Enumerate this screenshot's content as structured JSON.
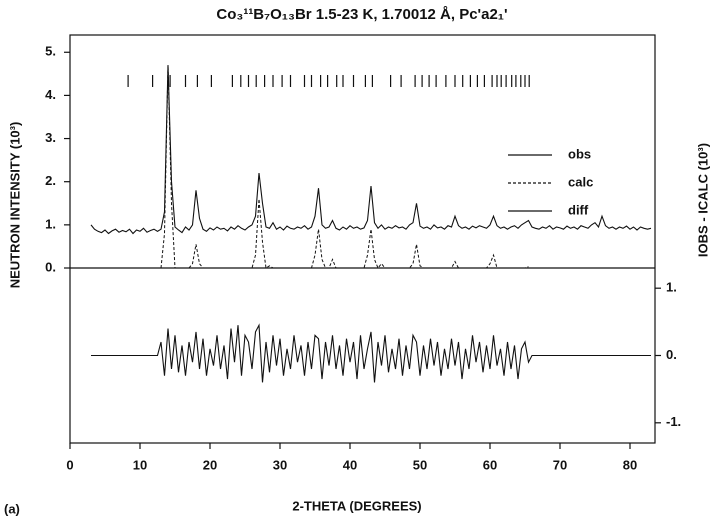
{
  "chart_data": {
    "type": "line",
    "title": "Co₃¹¹B₇O₁₃Br 1.5-23 K, 1.70012 Å, Pc'a2₁'",
    "x_label": "2-THETA (DEGREES)",
    "y_label": "NEUTRON INTENSITY (10³)",
    "y2_label": "IOBS - ICALC (10³)",
    "panel_label": "(a)",
    "xlim": [
      0,
      85
    ],
    "xticks": [
      0,
      10,
      20,
      30,
      40,
      50,
      60,
      70,
      80
    ],
    "ylim": [
      0,
      5.4
    ],
    "yticks": [
      {
        "value": 0,
        "label": "0."
      },
      {
        "value": 1,
        "label": "1."
      },
      {
        "value": 2,
        "label": "2."
      },
      {
        "value": 3,
        "label": "3."
      },
      {
        "value": 4,
        "label": "4."
      },
      {
        "value": 5,
        "label": "5."
      }
    ],
    "y2lim": [
      -1.3,
      1.3
    ],
    "y2ticks": [
      {
        "value": 1,
        "label": "1."
      },
      {
        "value": 0,
        "label": "0."
      },
      {
        "value": -1,
        "label": "-1."
      }
    ],
    "reflection_positions": [
      8.3,
      11.8,
      14.3,
      16.5,
      18.2,
      20.2,
      23.2,
      24.4,
      25.5,
      26.6,
      27.8,
      29,
      30.3,
      31.5,
      33.5,
      34.5,
      35.8,
      36.8,
      38.1,
      39,
      40.5,
      42.2,
      43.2,
      45.8,
      47.3,
      49.3,
      50.3,
      51.3,
      52.3,
      53.7,
      55,
      56.1,
      57.2,
      58.2,
      59.2,
      60.3,
      61,
      61.6,
      62.3,
      63.1,
      63.7,
      64.4,
      65,
      65.6
    ],
    "x": [
      3,
      3.5,
      4,
      4.5,
      5,
      5.5,
      6,
      6.5,
      7,
      7.5,
      8,
      8.5,
      9,
      9.5,
      10,
      10.5,
      11,
      11.5,
      12,
      12.5,
      13,
      13.5,
      14,
      14.5,
      15,
      15.5,
      16,
      16.5,
      17,
      17.5,
      18,
      18.5,
      19,
      19.5,
      20,
      20.5,
      21,
      21.5,
      22,
      22.5,
      23,
      23.5,
      24,
      24.5,
      25,
      25.5,
      26,
      26.5,
      27,
      27.5,
      28,
      28.5,
      29,
      29.5,
      30,
      30.5,
      31,
      31.5,
      32,
      32.5,
      33,
      33.5,
      34,
      34.5,
      35,
      35.5,
      36,
      36.5,
      37,
      37.5,
      38,
      38.5,
      39,
      39.5,
      40,
      40.5,
      41,
      41.5,
      42,
      42.5,
      43,
      43.5,
      44,
      44.5,
      45,
      45.5,
      46,
      46.5,
      47,
      47.5,
      48,
      48.5,
      49,
      49.5,
      50,
      50.5,
      51,
      51.5,
      52,
      52.5,
      53,
      53.5,
      54,
      54.5,
      55,
      55.5,
      56,
      56.5,
      57,
      57.5,
      58,
      58.5,
      59,
      59.5,
      60,
      60.5,
      61,
      61.5,
      62,
      62.5,
      63,
      63.5,
      64,
      64.5,
      65,
      65.5,
      66,
      66.5,
      67,
      67.5,
      68,
      68.5,
      69,
      69.5,
      70,
      70.5,
      71,
      71.5,
      72,
      72.5,
      73,
      73.5,
      74,
      74.5,
      75,
      75.5,
      76,
      76.5,
      77,
      77.5,
      78,
      78.5,
      79,
      79.5,
      80,
      80.5,
      81,
      81.5,
      82,
      82.5,
      83
    ],
    "series": [
      {
        "name": "obs",
        "color": "#111111",
        "dash": false,
        "values": [
          1.0,
          0.9,
          0.85,
          0.82,
          0.88,
          0.8,
          0.86,
          0.9,
          0.83,
          0.87,
          0.84,
          0.9,
          0.8,
          0.88,
          0.85,
          0.92,
          0.83,
          0.87,
          0.9,
          0.85,
          0.9,
          1.3,
          4.7,
          2.0,
          0.95,
          0.88,
          0.82,
          0.95,
          0.88,
          1.0,
          1.8,
          1.15,
          0.9,
          0.85,
          0.93,
          0.88,
          0.95,
          0.9,
          0.92,
          0.86,
          0.95,
          0.9,
          0.98,
          0.92,
          0.88,
          0.95,
          1.0,
          1.2,
          2.2,
          1.5,
          0.95,
          0.92,
          1.05,
          0.9,
          0.95,
          0.88,
          0.97,
          0.92,
          0.9,
          0.95,
          0.92,
          0.98,
          0.9,
          0.95,
          1.2,
          1.85,
          1.0,
          0.92,
          0.95,
          1.1,
          0.92,
          0.88,
          0.95,
          0.9,
          0.98,
          0.92,
          0.95,
          0.9,
          0.93,
          1.1,
          1.9,
          1.05,
          0.92,
          1.0,
          0.9,
          0.95,
          0.92,
          0.98,
          0.93,
          0.95,
          0.9,
          1.0,
          1.05,
          1.5,
          0.97,
          0.92,
          0.95,
          0.9,
          1.0,
          0.93,
          0.95,
          0.9,
          0.98,
          0.95,
          1.2,
          0.98,
          0.92,
          0.95,
          0.9,
          0.97,
          0.93,
          0.98,
          0.95,
          0.92,
          1.0,
          1.2,
          0.98,
          0.92,
          0.95,
          0.9,
          0.95,
          0.98,
          0.92,
          1.0,
          1.05,
          1.1,
          0.95,
          0.92,
          0.9,
          0.95,
          0.92,
          0.98,
          0.9,
          0.95,
          0.93,
          0.9,
          0.97,
          0.92,
          0.95,
          0.9,
          0.98,
          0.95,
          0.92,
          1.0,
          1.05,
          0.95,
          1.2,
          0.98,
          0.92,
          0.95,
          0.9,
          0.95,
          0.92,
          0.97,
          0.9,
          0.95,
          0.88,
          0.95,
          0.92,
          0.9,
          0.92
        ]
      },
      {
        "name": "calc",
        "color": "#111111",
        "dash": true,
        "values": [
          null,
          null,
          null,
          null,
          null,
          null,
          null,
          null,
          null,
          null,
          null,
          null,
          null,
          null,
          null,
          null,
          null,
          null,
          null,
          null,
          0,
          0.8,
          4.7,
          1.5,
          0,
          0,
          0,
          0,
          0,
          0.1,
          0.55,
          0.1,
          0,
          0,
          0,
          0,
          0,
          0,
          0,
          0,
          0,
          0,
          0,
          0,
          0,
          0,
          0,
          0.3,
          1.6,
          0.6,
          0,
          0.05,
          0,
          0,
          0,
          0,
          0,
          0,
          0,
          0,
          0,
          0,
          0,
          0,
          0.3,
          0.9,
          0.2,
          0,
          0,
          0.2,
          0,
          0,
          0,
          0,
          0,
          0,
          0,
          0,
          0,
          0.3,
          0.9,
          0.2,
          0,
          0.1,
          0,
          0,
          0,
          0,
          0,
          0,
          0,
          0,
          0.1,
          0.55,
          0.05,
          0,
          0,
          0,
          0,
          0,
          0,
          0,
          0,
          0,
          0.15,
          0,
          0,
          0,
          0,
          0,
          0,
          0,
          0,
          0,
          0.1,
          0.3,
          0,
          0,
          0,
          0,
          0,
          0,
          0,
          0,
          0,
          0.03,
          null,
          null,
          null,
          null,
          null,
          null,
          null,
          null,
          null,
          null,
          null,
          null,
          null,
          null,
          null,
          null,
          null,
          null,
          null,
          null,
          null,
          null,
          null,
          null,
          null,
          null,
          null,
          null,
          null,
          null,
          null,
          null,
          null,
          null,
          null
        ]
      },
      {
        "name": "diff",
        "color": "#111111",
        "dash": false,
        "axis": "y2",
        "values": [
          0,
          0,
          0,
          0,
          0,
          0,
          0,
          0,
          0,
          0,
          0,
          0,
          0,
          0,
          0,
          0,
          0,
          0,
          0,
          0,
          0.2,
          -0.3,
          0.4,
          -0.2,
          0.3,
          -0.25,
          0.15,
          -0.3,
          0.2,
          -0.1,
          0.35,
          -0.2,
          0.25,
          -0.3,
          0.1,
          -0.15,
          0.3,
          -0.2,
          0.15,
          -0.35,
          0.4,
          -0.1,
          0.45,
          -0.3,
          0.3,
          0.2,
          -0.2,
          0.35,
          0.45,
          -0.4,
          0.2,
          -0.25,
          0.3,
          -0.15,
          0.25,
          -0.3,
          0.1,
          -0.2,
          0.3,
          -0.1,
          0.15,
          -0.3,
          0.2,
          -0.2,
          0.3,
          0.25,
          -0.35,
          0.2,
          -0.15,
          0.3,
          -0.2,
          0.15,
          -0.3,
          0.25,
          -0.1,
          0.2,
          -0.35,
          0.3,
          -0.2,
          0.1,
          0.35,
          -0.4,
          0.2,
          -0.15,
          0.3,
          -0.25,
          0.1,
          -0.2,
          0.25,
          -0.3,
          0.15,
          -0.2,
          0.3,
          0.2,
          -0.3,
          0.15,
          -0.2,
          0.25,
          -0.15,
          0.2,
          -0.3,
          0.1,
          -0.2,
          0.25,
          -0.15,
          0.2,
          -0.35,
          0.1,
          -0.2,
          0.3,
          -0.1,
          0.2,
          -0.25,
          0.15,
          -0.2,
          0.3,
          -0.15,
          0.1,
          -0.3,
          0.2,
          -0.2,
          0.15,
          -0.35,
          0.1,
          0.2,
          -0.1,
          0,
          0,
          0,
          0,
          0,
          0,
          0,
          0,
          0,
          0,
          0,
          0,
          0,
          0,
          0,
          0,
          0,
          0,
          0,
          0,
          0,
          0,
          0,
          0,
          0,
          0,
          0,
          0,
          0,
          0,
          0,
          0,
          0,
          0,
          0
        ]
      }
    ]
  }
}
